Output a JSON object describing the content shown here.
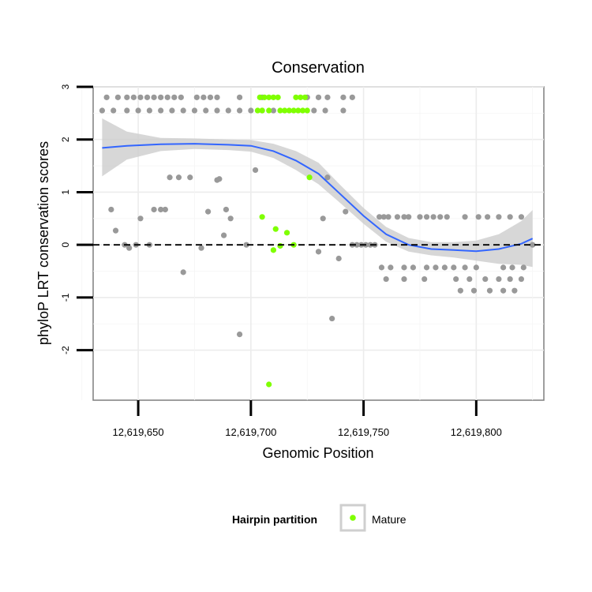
{
  "chart_data": {
    "type": "scatter",
    "title": "Conservation",
    "xlabel": "Genomic Position",
    "ylabel": "phyloP LRT conservation scores",
    "xlim": [
      12619630,
      12619830
    ],
    "ylim": [
      -2.95,
      3.0
    ],
    "x_ticks": [
      12619650,
      12619700,
      12619750,
      12619800
    ],
    "x_tick_labels": [
      "12,619,650",
      "12,619,700",
      "12,619,750",
      "12,619,800"
    ],
    "y_ticks": [
      -2,
      -1,
      0,
      1,
      2,
      3
    ],
    "y_tick_labels": [
      "-2",
      "-1",
      "0",
      "1",
      "2",
      "3"
    ],
    "reference_line": {
      "y": 0,
      "style": "dashed"
    },
    "legend": {
      "title": "Hairpin partition",
      "entries": [
        {
          "label": "Mature",
          "color": "#7fff00"
        }
      ]
    },
    "colors": {
      "other": "#999999",
      "mature": "#7fff00",
      "smooth": "#3366ff",
      "band": "#cccccc"
    },
    "series": [
      {
        "name": "Other",
        "points": [
          [
            12619634,
            2.55
          ],
          [
            12619639,
            2.55
          ],
          [
            12619645,
            2.55
          ],
          [
            12619650,
            2.55
          ],
          [
            12619655,
            2.55
          ],
          [
            12619660,
            2.55
          ],
          [
            12619665,
            2.55
          ],
          [
            12619670,
            2.55
          ],
          [
            12619675,
            2.55
          ],
          [
            12619680,
            2.55
          ],
          [
            12619685,
            2.55
          ],
          [
            12619690,
            2.55
          ],
          [
            12619695,
            2.55
          ],
          [
            12619700,
            2.55
          ],
          [
            12619705,
            2.55
          ],
          [
            12619710,
            2.55
          ],
          [
            12619728,
            2.55
          ],
          [
            12619733,
            2.55
          ],
          [
            12619741,
            2.55
          ],
          [
            12619636,
            2.8
          ],
          [
            12619641,
            2.8
          ],
          [
            12619645,
            2.8
          ],
          [
            12619648,
            2.8
          ],
          [
            12619651,
            2.8
          ],
          [
            12619654,
            2.8
          ],
          [
            12619657,
            2.8
          ],
          [
            12619660,
            2.8
          ],
          [
            12619663,
            2.8
          ],
          [
            12619666,
            2.8
          ],
          [
            12619669,
            2.8
          ],
          [
            12619676,
            2.8
          ],
          [
            12619679,
            2.8
          ],
          [
            12619682,
            2.8
          ],
          [
            12619685,
            2.8
          ],
          [
            12619695,
            2.8
          ],
          [
            12619705,
            2.8
          ],
          [
            12619725,
            2.8
          ],
          [
            12619730,
            2.8
          ],
          [
            12619734,
            2.8
          ],
          [
            12619741,
            2.8
          ],
          [
            12619745,
            2.8
          ],
          [
            12619638,
            0.67
          ],
          [
            12619640,
            0.27
          ],
          [
            12619644,
            0.0
          ],
          [
            12619646,
            -0.06
          ],
          [
            12619649,
            0.0
          ],
          [
            12619651,
            0.5
          ],
          [
            12619655,
            0.0
          ],
          [
            12619657,
            0.67
          ],
          [
            12619660,
            0.67
          ],
          [
            12619662,
            0.67
          ],
          [
            12619664,
            1.28
          ],
          [
            12619668,
            1.28
          ],
          [
            12619670,
            -0.52
          ],
          [
            12619673,
            1.28
          ],
          [
            12619678,
            -0.06
          ],
          [
            12619681,
            0.63
          ],
          [
            12619685,
            1.23
          ],
          [
            12619686,
            1.25
          ],
          [
            12619688,
            0.18
          ],
          [
            12619689,
            0.67
          ],
          [
            12619691,
            0.5
          ],
          [
            12619695,
            -1.7
          ],
          [
            12619698,
            0.0
          ],
          [
            12619702,
            1.42
          ],
          [
            12619730,
            -0.13
          ],
          [
            12619732,
            0.5
          ],
          [
            12619734,
            1.28
          ],
          [
            12619736,
            -1.4
          ],
          [
            12619739,
            -0.26
          ],
          [
            12619742,
            0.63
          ],
          [
            12619745,
            0.0
          ],
          [
            12619747,
            0.0
          ],
          [
            12619749,
            0.0
          ],
          [
            12619751,
            0.0
          ],
          [
            12619753,
            0.0
          ],
          [
            12619755,
            0.0
          ],
          [
            12619757,
            0.53
          ],
          [
            12619759,
            0.53
          ],
          [
            12619761,
            0.53
          ],
          [
            12619765,
            0.53
          ],
          [
            12619768,
            0.53
          ],
          [
            12619770,
            0.53
          ],
          [
            12619775,
            0.53
          ],
          [
            12619778,
            0.53
          ],
          [
            12619781,
            0.53
          ],
          [
            12619784,
            0.53
          ],
          [
            12619787,
            0.53
          ],
          [
            12619795,
            0.53
          ],
          [
            12619801,
            0.53
          ],
          [
            12619805,
            0.53
          ],
          [
            12619810,
            0.53
          ],
          [
            12619815,
            0.53
          ],
          [
            12619820,
            0.53
          ],
          [
            12619758,
            -0.43
          ],
          [
            12619762,
            -0.43
          ],
          [
            12619768,
            -0.43
          ],
          [
            12619772,
            -0.43
          ],
          [
            12619778,
            -0.43
          ],
          [
            12619782,
            -0.43
          ],
          [
            12619786,
            -0.43
          ],
          [
            12619790,
            -0.43
          ],
          [
            12619795,
            -0.43
          ],
          [
            12619800,
            -0.43
          ],
          [
            12619812,
            -0.43
          ],
          [
            12619816,
            -0.43
          ],
          [
            12619821,
            -0.43
          ],
          [
            12619760,
            -0.65
          ],
          [
            12619768,
            -0.65
          ],
          [
            12619777,
            -0.65
          ],
          [
            12619791,
            -0.65
          ],
          [
            12619797,
            -0.65
          ],
          [
            12619804,
            -0.65
          ],
          [
            12619810,
            -0.65
          ],
          [
            12619815,
            -0.65
          ],
          [
            12619820,
            -0.65
          ],
          [
            12619793,
            -0.87
          ],
          [
            12619799,
            -0.87
          ],
          [
            12619806,
            -0.87
          ],
          [
            12619812,
            -0.87
          ],
          [
            12619817,
            -0.87
          ],
          [
            12619825,
            0.0
          ]
        ]
      },
      {
        "name": "Mature",
        "points": [
          [
            12619704,
            2.8
          ],
          [
            12619706,
            2.8
          ],
          [
            12619708,
            2.8
          ],
          [
            12619710,
            2.8
          ],
          [
            12619712,
            2.8
          ],
          [
            12619720,
            2.8
          ],
          [
            12619722,
            2.8
          ],
          [
            12619724,
            2.8
          ],
          [
            12619703,
            2.55
          ],
          [
            12619705,
            2.55
          ],
          [
            12619708,
            2.55
          ],
          [
            12619713,
            2.55
          ],
          [
            12619715,
            2.55
          ],
          [
            12619717,
            2.55
          ],
          [
            12619719,
            2.55
          ],
          [
            12619721,
            2.55
          ],
          [
            12619723,
            2.55
          ],
          [
            12619725,
            2.55
          ],
          [
            12619705,
            0.53
          ],
          [
            12619711,
            0.3
          ],
          [
            12619713,
            -0.02
          ],
          [
            12619710,
            -0.1
          ],
          [
            12619716,
            0.23
          ],
          [
            12619719,
            0.0
          ],
          [
            12619726,
            1.28
          ],
          [
            12619708,
            -2.65
          ]
        ]
      }
    ],
    "smooth_fit": {
      "method": "loess",
      "x": [
        12619634,
        12619645,
        12619660,
        12619675,
        12619690,
        12619700,
        12619710,
        12619720,
        12619730,
        12619740,
        12619750,
        12619760,
        12619770,
        12619780,
        12619790,
        12619800,
        12619810,
        12619820,
        12619825
      ],
      "y": [
        1.84,
        1.88,
        1.91,
        1.92,
        1.9,
        1.88,
        1.78,
        1.6,
        1.35,
        0.95,
        0.55,
        0.2,
        0.0,
        -0.08,
        -0.1,
        -0.12,
        -0.08,
        0.02,
        0.12
      ],
      "ci_lower": [
        1.3,
        1.62,
        1.78,
        1.82,
        1.8,
        1.77,
        1.65,
        1.42,
        1.15,
        0.78,
        0.4,
        0.06,
        -0.13,
        -0.2,
        -0.24,
        -0.3,
        -0.36,
        -0.38,
        -0.42
      ],
      "ci_upper": [
        2.4,
        2.15,
        2.03,
        2.02,
        2.0,
        1.99,
        1.92,
        1.78,
        1.56,
        1.12,
        0.7,
        0.34,
        0.13,
        0.05,
        0.05,
        0.08,
        0.2,
        0.45,
        0.66
      ]
    }
  }
}
